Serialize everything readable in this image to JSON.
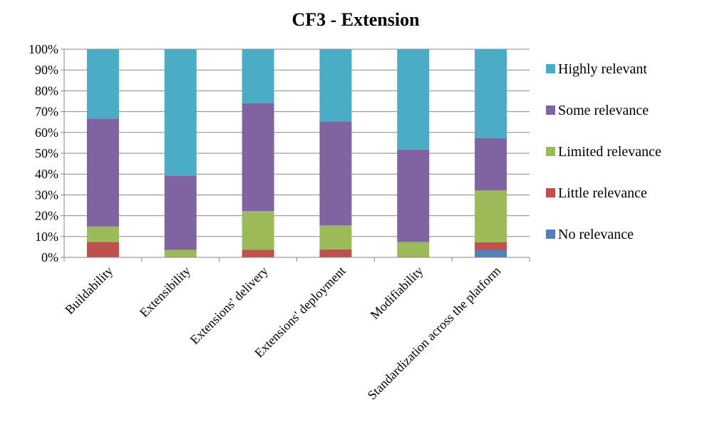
{
  "chart_data": {
    "type": "bar",
    "stacked": true,
    "percent_stacked": true,
    "title": "CF3  - Extension",
    "categories": [
      "Buildability",
      "Extensibility",
      "Extensions' delivery",
      "Extensions' deployment",
      "Modifiability",
      "Standardization across the platform"
    ],
    "series": [
      {
        "name": "No relevance",
        "color": "#4f81bd",
        "values": [
          0,
          0,
          0,
          0,
          0,
          3.6
        ]
      },
      {
        "name": "Little relevance",
        "color": "#c0504d",
        "values": [
          7.4,
          0,
          3.7,
          3.8,
          0,
          3.6
        ]
      },
      {
        "name": "Limited relevance",
        "color": "#9bbb59",
        "values": [
          7.4,
          3.6,
          18.5,
          11.5,
          7.4,
          25
        ]
      },
      {
        "name": "Some relevance",
        "color": "#8064a2",
        "values": [
          51.9,
          35.7,
          51.9,
          50,
          44.4,
          25
        ]
      },
      {
        "name": "Highly relevant",
        "color": "#4bacc6",
        "values": [
          33.3,
          60.7,
          25.9,
          34.6,
          48.1,
          42.9
        ]
      }
    ],
    "ylim": [
      0,
      100
    ],
    "yticks": [
      "0%",
      "10%",
      "20%",
      "30%",
      "40%",
      "50%",
      "60%",
      "70%",
      "80%",
      "90%",
      "100%"
    ],
    "grid": true,
    "legend_position": "right",
    "legend_order": [
      "Highly relevant",
      "Some relevance",
      "Limited relevance",
      "Little relevance",
      "No relevance"
    ]
  }
}
